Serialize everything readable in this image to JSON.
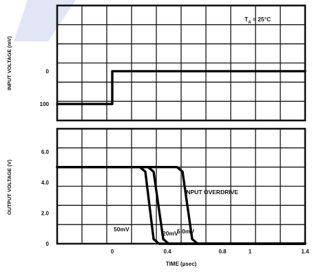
{
  "chart_data": [
    {
      "type": "line",
      "panel": "top",
      "ylabel": "INPUT VOLTAGE (mV)",
      "annotation": "T",
      "annotation_sub": "A",
      "annotation_rest": " = 25°C",
      "ylim": [
        -150,
        200
      ],
      "xlim": [
        -0.4,
        1.4
      ],
      "yticks": [
        {
          "value": 0,
          "label": "0"
        },
        {
          "value": -100,
          "label": "100"
        }
      ],
      "grid": true,
      "series": [
        {
          "x": [
            -0.4,
            0.0,
            0.0,
            1.4
          ],
          "y": [
            -100,
            -100,
            0,
            0
          ]
        }
      ]
    },
    {
      "type": "line",
      "panel": "bottom",
      "ylabel": "OUTPUT VOLTAGE (V)",
      "xlabel": "TIME (µsec)",
      "legend_title": "INPUT OVERDRIVE",
      "ylim": [
        0,
        7.5
      ],
      "xlim": [
        -0.4,
        1.4
      ],
      "yticks": [
        {
          "value": 0,
          "label": "0"
        },
        {
          "value": 2,
          "label": "2.0"
        },
        {
          "value": 4,
          "label": "4.0"
        },
        {
          "value": 6,
          "label": "6.0"
        }
      ],
      "xticks": [
        {
          "value": 0,
          "label": "0"
        },
        {
          "value": 0.4,
          "label": "0.4"
        },
        {
          "value": 0.8,
          "label": "0.8"
        },
        {
          "value": 1.0,
          "label": "1"
        },
        {
          "value": 1.4,
          "label": "1.4"
        }
      ],
      "grid": true,
      "series": [
        {
          "name": "50mV",
          "x": [
            -0.4,
            0.2,
            0.24,
            0.3,
            0.34,
            1.4
          ],
          "y": [
            5,
            5,
            4.7,
            0.3,
            0,
            0
          ]
        },
        {
          "name": "20mV",
          "x": [
            -0.4,
            0.26,
            0.3,
            0.37,
            0.41,
            1.4
          ],
          "y": [
            5,
            5,
            4.7,
            0.3,
            0,
            0
          ]
        },
        {
          "name": "5.0mV",
          "x": [
            -0.4,
            0.47,
            0.51,
            0.58,
            0.62,
            1.4
          ],
          "y": [
            5,
            5,
            4.7,
            0.3,
            0,
            0
          ]
        }
      ]
    }
  ]
}
